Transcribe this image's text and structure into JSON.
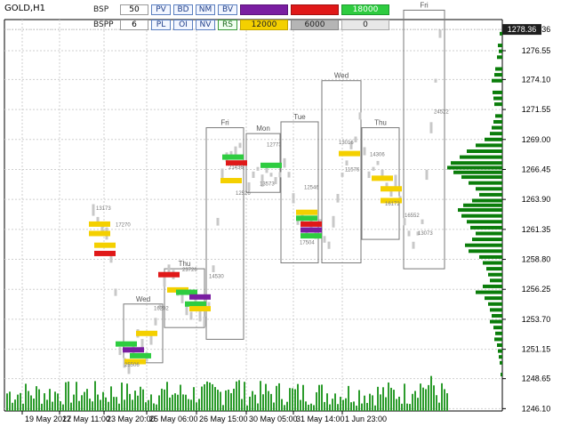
{
  "symbol": "GOLD,H1",
  "panel": {
    "row1": {
      "label": "BSP",
      "value": "50",
      "buttons": [
        "PV",
        "BD",
        "NM",
        "BV"
      ],
      "readouts": [
        "",
        "",
        "18000"
      ]
    },
    "row2": {
      "label": "BSPP",
      "value": "6",
      "buttons": [
        "PL",
        "OI",
        "NV",
        "RS"
      ],
      "readouts": [
        "12000",
        "6000",
        "0"
      ]
    }
  },
  "colors": {
    "accent_purple": "#7a1ea1",
    "accent_red": "#e01818",
    "accent_green": "#2ecc40",
    "accent_yellow": "#f4d000",
    "profile_green": "#0a7d0a",
    "bar_green": "#2d9c2d",
    "box_gray": "#7a7a7a",
    "current_price_bg": "#1e1e1e"
  },
  "chart_data": {
    "type": "candlestick",
    "title": "",
    "y_ticks": [
      "1278.36",
      "1276.55",
      "1274.10",
      "1271.55",
      "1269.00",
      "1266.45",
      "1263.90",
      "1261.35",
      "1258.80",
      "1256.25",
      "1253.70",
      "1251.15",
      "1248.65",
      "1246.10"
    ],
    "x_ticks": [
      "19 May 2017",
      "22 May 11:00",
      "23 May 20:00",
      "25 May 06:00",
      "26 May 15:00",
      "30 May 05:00",
      "31 May 14:00",
      "1 Jun 23:00"
    ],
    "current_price": "1278.36",
    "session_boxes": [
      {
        "label": "Wed",
        "from": 1250.0,
        "to": 1255.0
      },
      {
        "label": "Thu",
        "from": 1253.0,
        "to": 1258.0
      },
      {
        "label": "Fri",
        "from": 1252.0,
        "to": 1270.0
      },
      {
        "label": "Mon",
        "from": 1264.5,
        "to": 1269.5
      },
      {
        "label": "Tue",
        "from": 1258.5,
        "to": 1270.5
      },
      {
        "label": "Wed",
        "from": 1258.5,
        "to": 1274.0
      },
      {
        "label": "Thu",
        "from": 1260.5,
        "to": 1270.0
      },
      {
        "label": "Fri",
        "from": 1258.0,
        "to": 1280.0
      }
    ],
    "labels": [
      "13173",
      "25506",
      "16202",
      "23726",
      "21436",
      "12526",
      "13573",
      "17504",
      "11576",
      "16172",
      "13073",
      "24522",
      "16552",
      "14306",
      "13016",
      "12546",
      "12773",
      "14530",
      "17270"
    ]
  }
}
